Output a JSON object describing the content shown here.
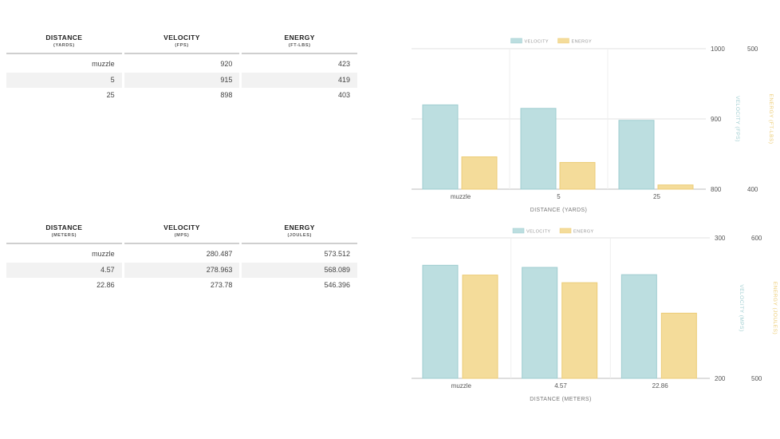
{
  "tables": [
    {
      "headers": [
        {
          "main": "DISTANCE",
          "sub": "(YARDS)"
        },
        {
          "main": "VELOCITY",
          "sub": "(FPS)"
        },
        {
          "main": "ENERGY",
          "sub": "(FT-LBS)"
        }
      ],
      "rows": [
        [
          "muzzle",
          "920",
          "423"
        ],
        [
          "5",
          "915",
          "419"
        ],
        [
          "25",
          "898",
          "403"
        ]
      ]
    },
    {
      "headers": [
        {
          "main": "DISTANCE",
          "sub": "(METERS)"
        },
        {
          "main": "VELOCITY",
          "sub": "(MPS)"
        },
        {
          "main": "ENERGY",
          "sub": "(JOULES)"
        }
      ],
      "rows": [
        [
          "muzzle",
          "280.487",
          "573.512"
        ],
        [
          "4.57",
          "278.963",
          "568.089"
        ],
        [
          "22.86",
          "273.78",
          "546.396"
        ]
      ]
    }
  ],
  "colors": {
    "velocity_fill": "#bcdee0",
    "velocity_stroke": "#9fcdd0",
    "energy_fill": "#f4dc9a",
    "energy_stroke": "#eccd78",
    "axis_text": "#555555",
    "velocity_axis_label": "#9fcdd0",
    "energy_axis_label": "#eccd78",
    "grid": "#e2e2e2"
  },
  "chart_data": [
    {
      "type": "bar",
      "categories": [
        "muzzle",
        "5",
        "25"
      ],
      "xlabel": "DISTANCE (YARDS)",
      "legend": [
        "VELOCITY",
        "ENERGY"
      ],
      "legend_position": "top-center",
      "grid": true,
      "series": [
        {
          "name": "VELOCITY",
          "values": [
            920,
            915,
            898
          ],
          "axis": "left",
          "ylabel": "VELOCITY (FPS)",
          "ylim": [
            800,
            1000
          ],
          "ticks": [
            "1000",
            "900",
            "800"
          ]
        },
        {
          "name": "ENERGY",
          "values": [
            423,
            419,
            403
          ],
          "axis": "right",
          "ylabel": "ENERGY (FT-LBS)",
          "ylim": [
            400,
            500
          ],
          "ticks": [
            "500",
            "400"
          ]
        }
      ]
    },
    {
      "type": "bar",
      "categories": [
        "muzzle",
        "4.57",
        "22.86"
      ],
      "xlabel": "DISTANCE (METERS)",
      "legend": [
        "VELOCITY",
        "ENERGY"
      ],
      "legend_position": "top-center",
      "grid": true,
      "series": [
        {
          "name": "VELOCITY",
          "values": [
            280.487,
            278.963,
            273.78
          ],
          "axis": "left",
          "ylabel": "VELOCITY (MPS)",
          "ylim": [
            200,
            300
          ],
          "ticks": [
            "300",
            "200"
          ]
        },
        {
          "name": "ENERGY",
          "values": [
            573.512,
            568.089,
            546.396
          ],
          "axis": "right",
          "ylabel": "ENERGY (JOULES)",
          "ylim": [
            500,
            600
          ],
          "ticks": [
            "600",
            "500"
          ]
        }
      ]
    }
  ]
}
